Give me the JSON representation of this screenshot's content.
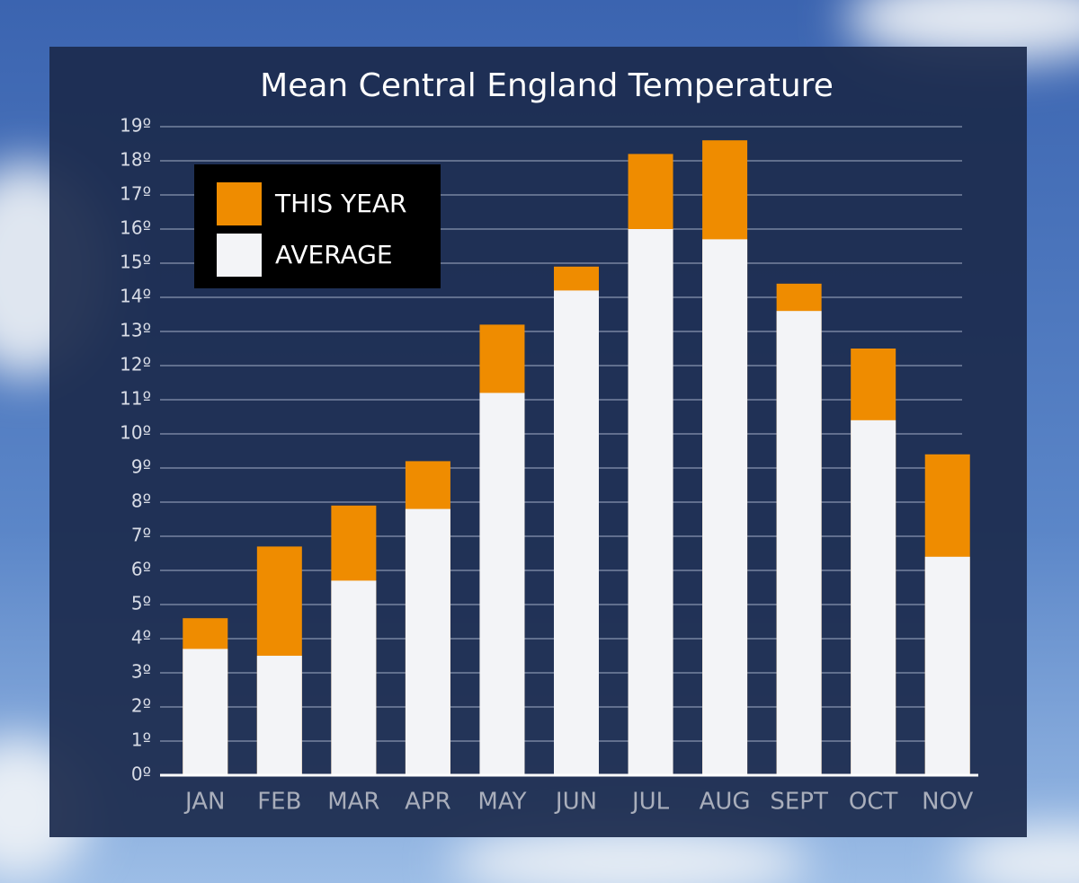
{
  "chart_data": {
    "type": "bar",
    "barmode": "overlay",
    "title": "Mean Central England Temperature",
    "categories": [
      "JAN",
      "FEB",
      "MAR",
      "APR",
      "MAY",
      "JUN",
      "JUL",
      "AUG",
      "SEPT",
      "OCT",
      "NOV"
    ],
    "series": [
      {
        "name": "THIS YEAR",
        "color": "#ef8c00",
        "values": [
          4.6,
          6.7,
          7.9,
          9.2,
          13.2,
          14.9,
          18.2,
          18.6,
          14.4,
          12.5,
          9.4
        ]
      },
      {
        "name": "AVERAGE",
        "color": "#f3f4f7",
        "values": [
          3.7,
          3.5,
          5.7,
          7.8,
          11.2,
          14.2,
          16.0,
          15.7,
          13.6,
          10.4,
          6.4
        ]
      }
    ],
    "ylim": [
      0,
      19
    ],
    "yticks": [
      {
        "value": 0,
        "label": "0º"
      },
      {
        "value": 1,
        "label": "1º"
      },
      {
        "value": 2,
        "label": "2º"
      },
      {
        "value": 3,
        "label": "3º"
      },
      {
        "value": 4,
        "label": "4º"
      },
      {
        "value": 5,
        "label": "5º"
      },
      {
        "value": 6,
        "label": "6º"
      },
      {
        "value": 7,
        "label": "7º"
      },
      {
        "value": 8,
        "label": "8º"
      },
      {
        "value": 9,
        "label": "9º"
      },
      {
        "value": 10,
        "label": "10º"
      },
      {
        "value": 11,
        "label": "11º"
      },
      {
        "value": 12,
        "label": "12º"
      },
      {
        "value": 13,
        "label": "13º"
      },
      {
        "value": 14,
        "label": "14º"
      },
      {
        "value": 15,
        "label": "15º"
      },
      {
        "value": 16,
        "label": "16º"
      },
      {
        "value": 17,
        "label": "17º"
      },
      {
        "value": 18,
        "label": "18º"
      },
      {
        "value": 19,
        "label": "19º"
      }
    ],
    "grid": true,
    "legend": "top-left"
  }
}
